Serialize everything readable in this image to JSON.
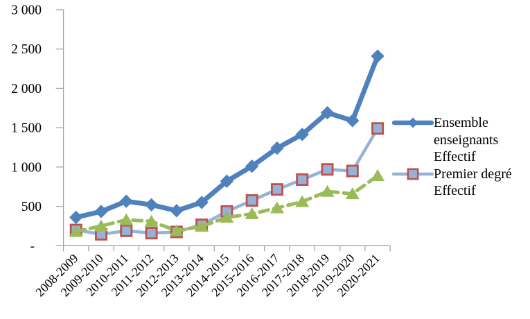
{
  "chart_data": {
    "type": "line",
    "title": "",
    "xlabel": "",
    "ylabel": "",
    "ylim": [
      0,
      3000
    ],
    "ytick_interval": 500,
    "ytick_labels": [
      "3 000",
      "2 500",
      "2 000",
      "1 500",
      "1 000",
      "500",
      "-"
    ],
    "grid": false,
    "legend_position": "right",
    "axis_color": "#A6A6A6",
    "text_color": "#000000",
    "categories": [
      "2008-2009",
      "2009-2010",
      "2010-2011",
      "2011-2012",
      "2012-2013",
      "2013-2014",
      "2014-2015",
      "2015-2016",
      "2016-2017",
      "2017-2018",
      "2018-2019",
      "2019-2020",
      "2020-2021"
    ],
    "series": [
      {
        "name": "Ensemble enseignants Effectif",
        "color": "#4F81BD",
        "marker": "diamond",
        "line_style": "solid",
        "values": [
          360,
          435,
          565,
          520,
          445,
          550,
          820,
          1010,
          1240,
          1415,
          1690,
          1590,
          2410
        ]
      },
      {
        "name": "Premier degré Effectif",
        "color": "#95B3D7",
        "marker": "square",
        "marker_border_color": "#C0504D",
        "line_style": "solid",
        "values": [
          200,
          145,
          190,
          160,
          175,
          265,
          435,
          575,
          715,
          840,
          970,
          950,
          1490
        ]
      },
      {
        "name": "",
        "color": "#9BBB59",
        "marker": "triangle",
        "line_style": "dashed",
        "values": [
          180,
          250,
          330,
          310,
          190,
          245,
          360,
          405,
          480,
          560,
          690,
          660,
          890
        ]
      }
    ],
    "legend": [
      {
        "lines": [
          "Ensemble",
          "enseignants",
          "Effectif"
        ]
      },
      {
        "lines": [
          "Premier degré",
          "Effectif"
        ]
      }
    ]
  }
}
